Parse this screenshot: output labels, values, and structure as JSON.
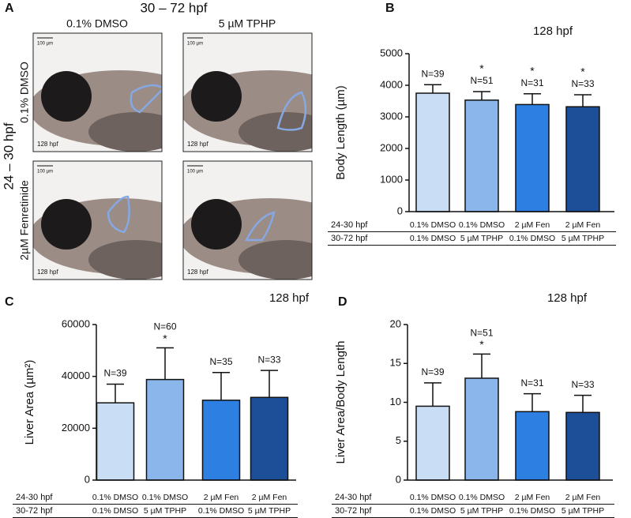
{
  "panel_a": {
    "letter": "A",
    "title": "30 – 72 hpf",
    "column_labels": [
      "0.1% DMSO",
      "5 µM TPHP"
    ],
    "row_title": "24 – 30 hpf",
    "row_labels": [
      "0.1% DMSO",
      "2µM Fenretinide"
    ],
    "images": [
      {
        "scale_bar": "100 µm",
        "stage": "128 hpf"
      },
      {
        "scale_bar": "100 µm",
        "stage": "128 hpf"
      },
      {
        "scale_bar": "100 µm",
        "stage": "128 hpf"
      },
      {
        "scale_bar": "100 µm",
        "stage": "128 hpf"
      }
    ]
  },
  "chart_data": [
    {
      "type": "bar",
      "panel": "B",
      "title": "128 hpf",
      "y_label": "Body Length (µm)",
      "category_rows": [
        {
          "name": "24-30 hpf",
          "labels": [
            "0.1% DMSO",
            "0.1% DMSO",
            "2 µM Fen",
            "2 µM Fen"
          ]
        },
        {
          "name": "30-72 hpf",
          "labels": [
            "0.1% DMSO",
            "5 µM TPHP",
            "0.1% DMSO",
            "5 µM TPHP"
          ]
        }
      ],
      "values": [
        3750,
        3530,
        3390,
        3320
      ],
      "errors": [
        270,
        270,
        340,
        380
      ],
      "annotations": [
        "N=39",
        "N=51",
        "N=31",
        "N=33"
      ],
      "significance": [
        null,
        "*",
        "*",
        "*"
      ],
      "colors": [
        "#c9def5",
        "#8ab6ec",
        "#2d80e2",
        "#1c4f98"
      ],
      "ylim": [
        0,
        5000
      ],
      "yticks": [
        0,
        1000,
        2000,
        3000,
        4000,
        5000
      ]
    },
    {
      "type": "bar",
      "panel": "C",
      "title": "128 hpf",
      "y_label": "Liver Area (µm²)",
      "category_rows": [
        {
          "name": "24-30 hpf",
          "labels": [
            "0.1% DMSO",
            "0.1% DMSO",
            "2 µM Fen",
            "2 µM Fen"
          ]
        },
        {
          "name": "30-72 hpf",
          "labels": [
            "0.1% DMSO",
            "5 µM TPHP",
            "0.1% DMSO",
            "5 µM TPHP"
          ]
        }
      ],
      "values": [
        29800,
        38800,
        30800,
        31900
      ],
      "errors": [
        7200,
        12200,
        10700,
        10400
      ],
      "annotations": [
        "N=39",
        "N=60",
        "N=35",
        "N=33"
      ],
      "significance": [
        null,
        "*",
        null,
        null
      ],
      "colors": [
        "#c9def5",
        "#8ab6ec",
        "#2d80e2",
        "#1c4f98"
      ],
      "ylim": [
        0,
        60000
      ],
      "yticks": [
        0,
        20000,
        40000,
        60000
      ]
    },
    {
      "type": "bar",
      "panel": "D",
      "title": "128 hpf",
      "y_label": "Liver Area/Body Length",
      "category_rows": [
        {
          "name": "24-30 hpf",
          "labels": [
            "0.1% DMSO",
            "0.1% DMSO",
            "2 µM Fen",
            "2 µM Fen"
          ]
        },
        {
          "name": "30-72 hpf",
          "labels": [
            "0.1% DMSO",
            "5 µM TPHP",
            "0.1% DMSO",
            "5 µM TPHP"
          ]
        }
      ],
      "values": [
        9.5,
        13.1,
        8.8,
        8.7
      ],
      "errors": [
        3.0,
        3.1,
        2.3,
        2.2
      ],
      "annotations": [
        "N=39",
        "N=51",
        "N=31",
        "N=33"
      ],
      "significance": [
        null,
        "*",
        null,
        null
      ],
      "colors": [
        "#c9def5",
        "#8ab6ec",
        "#2d80e2",
        "#1c4f98"
      ],
      "ylim": [
        0,
        20
      ],
      "yticks": [
        0,
        5,
        10,
        15,
        20
      ]
    }
  ]
}
